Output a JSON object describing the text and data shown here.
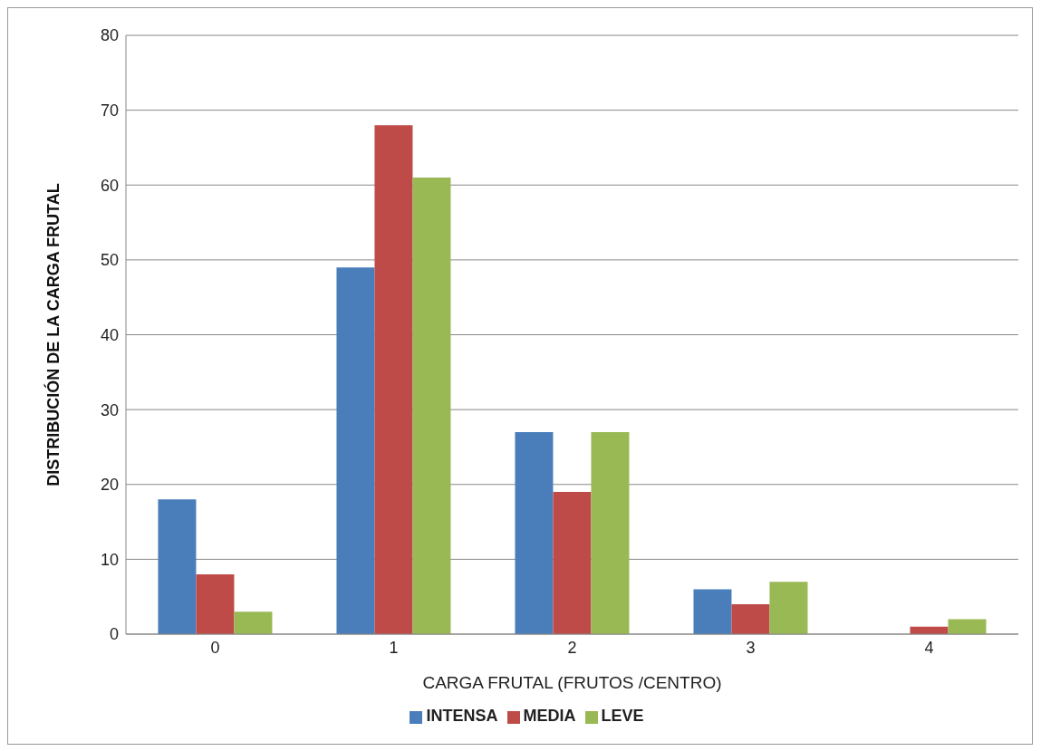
{
  "chart_data": {
    "type": "bar",
    "xlabel": "CARGA FRUTAL (FRUTOS /CENTRO)",
    "ylabel": "DISTRIBUCIÓN DE LA CARGA FRUTAL",
    "categories": [
      "0",
      "1",
      "2",
      "3",
      "4"
    ],
    "series": [
      {
        "name": "INTENSA",
        "color": "#4a7ebb",
        "values": [
          18,
          49,
          27,
          6,
          0
        ]
      },
      {
        "name": "MEDIA",
        "color": "#be4b48",
        "values": [
          8,
          68,
          19,
          4,
          1
        ]
      },
      {
        "name": "LEVE",
        "color": "#98b954",
        "values": [
          3,
          61,
          27,
          7,
          2
        ]
      }
    ],
    "ylim": [
      0,
      80
    ],
    "yticks": [
      0,
      10,
      20,
      30,
      40,
      50,
      60,
      70,
      80
    ],
    "grid": "y",
    "legend": "bottom"
  }
}
